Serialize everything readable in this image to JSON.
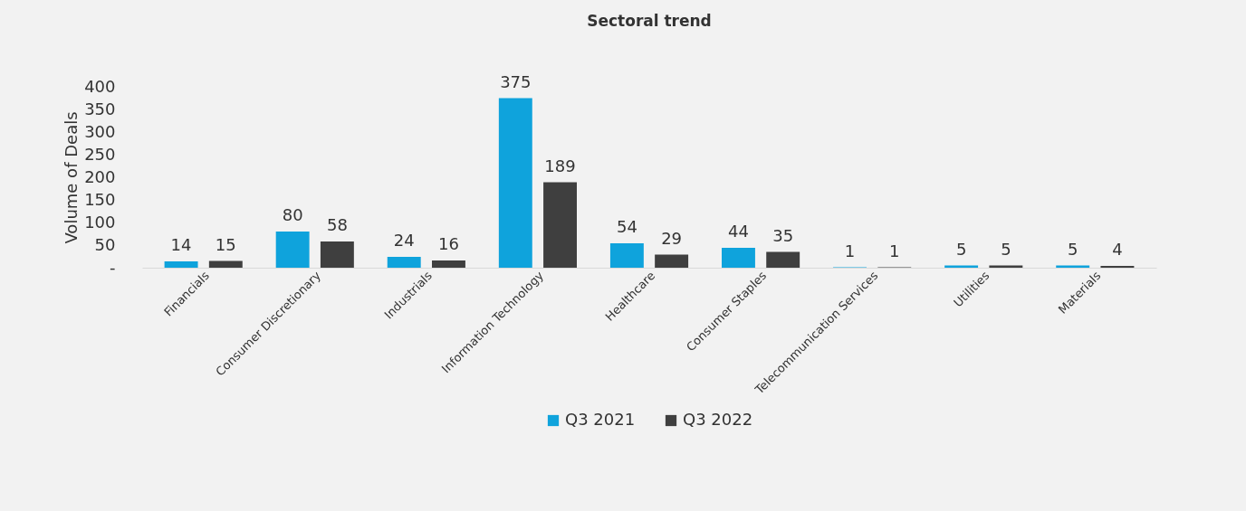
{
  "chart_data": {
    "type": "bar",
    "title": "Sectoral trend",
    "ylabel": "Volume of Deals",
    "categories": [
      "Financials",
      "Consumer Discretionary",
      "Industrials",
      "Information Technology",
      "Healthcare",
      "Consumer Staples",
      "Telecommunication Services",
      "Utilities",
      "Materials"
    ],
    "series": [
      {
        "name": "Q3 2021",
        "color": "#0fa3dc",
        "values": [
          14,
          80,
          24,
          375,
          54,
          44,
          1,
          5,
          5
        ]
      },
      {
        "name": "Q3 2022",
        "color": "#3f3f3f",
        "values": [
          15,
          58,
          16,
          189,
          29,
          35,
          1,
          5,
          4
        ]
      }
    ],
    "ylim": [
      0,
      400
    ],
    "yticks": [
      {
        "value": 0,
        "label": "-"
      },
      50,
      100,
      150,
      200,
      250,
      300,
      350,
      400
    ],
    "data_labels": true,
    "grid": false,
    "legend": "bottom"
  }
}
